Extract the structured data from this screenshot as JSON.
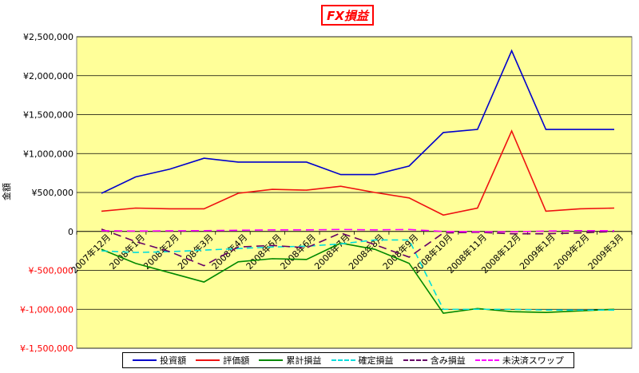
{
  "chart_data": {
    "type": "line",
    "title": "FX損益",
    "ylabel": "金額",
    "xlabel": "",
    "ylim": [
      -1500000,
      2500000
    ],
    "y_ticks": [
      "¥2,500,000",
      "¥2,000,000",
      "¥1,500,000",
      "¥1,000,000",
      "¥500,000",
      "0",
      "¥-500,000",
      "¥-1,000,000",
      "¥-1,500,000"
    ],
    "y_tick_values": [
      2500000,
      2000000,
      1500000,
      1000000,
      500000,
      0,
      -500000,
      -1000000,
      -1500000
    ],
    "categories": [
      "2007年12月",
      "2008年1月",
      "2008年2月",
      "2008年3月",
      "2008年4月",
      "2008年5月",
      "2008年6月",
      "2008年7月",
      "2008年8月",
      "2008年9月",
      "2008年10月",
      "2008年11月",
      "2008年12月",
      "2009年1月",
      "2009年2月",
      "2009年3月"
    ],
    "x_index": [
      0,
      0.5,
      1,
      1.5,
      2,
      2.5,
      3,
      3.5,
      4,
      4.5,
      5,
      5.5,
      6,
      6.5,
      7,
      7.5,
      8,
      8.5,
      9,
      9.5,
      10,
      10.5,
      11,
      11.5,
      12,
      12.5,
      13,
      13.5,
      14,
      14.5,
      15
    ],
    "series": [
      {
        "name": "投資額",
        "color": "#0000cc",
        "dash": "",
        "x": [
          0,
          1,
          2,
          3,
          4,
          5,
          6,
          7,
          8,
          9,
          10,
          11,
          12,
          13,
          14,
          15
        ],
        "values": [
          490000,
          700000,
          800000,
          940000,
          890000,
          890000,
          890000,
          730000,
          730000,
          840000,
          1270000,
          1310000,
          2320000,
          1310000,
          1310000,
          1310000
        ]
      },
      {
        "name": "評価額",
        "color": "#ee1111",
        "dash": "",
        "x": [
          0,
          1,
          2,
          3,
          4,
          5,
          6,
          7,
          8,
          9,
          10,
          11,
          12,
          13,
          14,
          15
        ],
        "values": [
          260000,
          300000,
          290000,
          290000,
          490000,
          540000,
          530000,
          580000,
          500000,
          430000,
          210000,
          300000,
          1290000,
          260000,
          290000,
          300000
        ]
      },
      {
        "name": "累計損益",
        "color": "#008800",
        "dash": "",
        "x": [
          0,
          1,
          2,
          3,
          4,
          5,
          6,
          7,
          8,
          9,
          10,
          11,
          12,
          13,
          14,
          15
        ],
        "values": [
          -230000,
          -410000,
          -530000,
          -650000,
          -390000,
          -350000,
          -360000,
          -150000,
          -230000,
          -410000,
          -1050000,
          -990000,
          -1030000,
          -1040000,
          -1020000,
          -1000000
        ]
      },
      {
        "name": "確定損益",
        "color": "#00dddd",
        "dash": "8,5",
        "x": [
          0,
          1,
          2,
          3,
          4,
          5,
          6,
          7,
          8,
          9,
          10,
          11,
          12,
          13,
          14,
          15
        ],
        "values": [
          -250000,
          -270000,
          -260000,
          -240000,
          -220000,
          -200000,
          -190000,
          -160000,
          -110000,
          -110000,
          -1000000,
          -1000000,
          -1000000,
          -1010000,
          -1010000,
          -1010000
        ]
      },
      {
        "name": "含み損益",
        "color": "#660066",
        "dash": "10,6",
        "x": [
          0,
          1,
          2,
          3,
          4,
          5,
          6,
          7,
          8,
          9,
          10,
          11,
          12,
          13,
          14,
          15
        ],
        "values": [
          30000,
          -130000,
          -260000,
          -440000,
          -200000,
          -180000,
          -210000,
          -20000,
          -170000,
          -330000,
          -20000,
          -10000,
          -30000,
          -30000,
          -20000,
          0
        ]
      },
      {
        "name": "未決済スワップ",
        "color": "#ff00ff",
        "dash": "10,6",
        "x": [
          0,
          1,
          2,
          3,
          4,
          5,
          6,
          7,
          8,
          9,
          10,
          11,
          12,
          13,
          14,
          15
        ],
        "values": [
          10000,
          5000,
          8000,
          10000,
          15000,
          20000,
          20000,
          25000,
          20000,
          25000,
          0,
          -5000,
          -5000,
          5000,
          10000,
          10000
        ]
      }
    ],
    "colors": {
      "plot_background": "#ffff99",
      "outer_background": "#ffffff",
      "gridline": "#000000",
      "negative_tick_label": "#ff0000"
    },
    "grid": true,
    "legend_position": "bottom"
  }
}
